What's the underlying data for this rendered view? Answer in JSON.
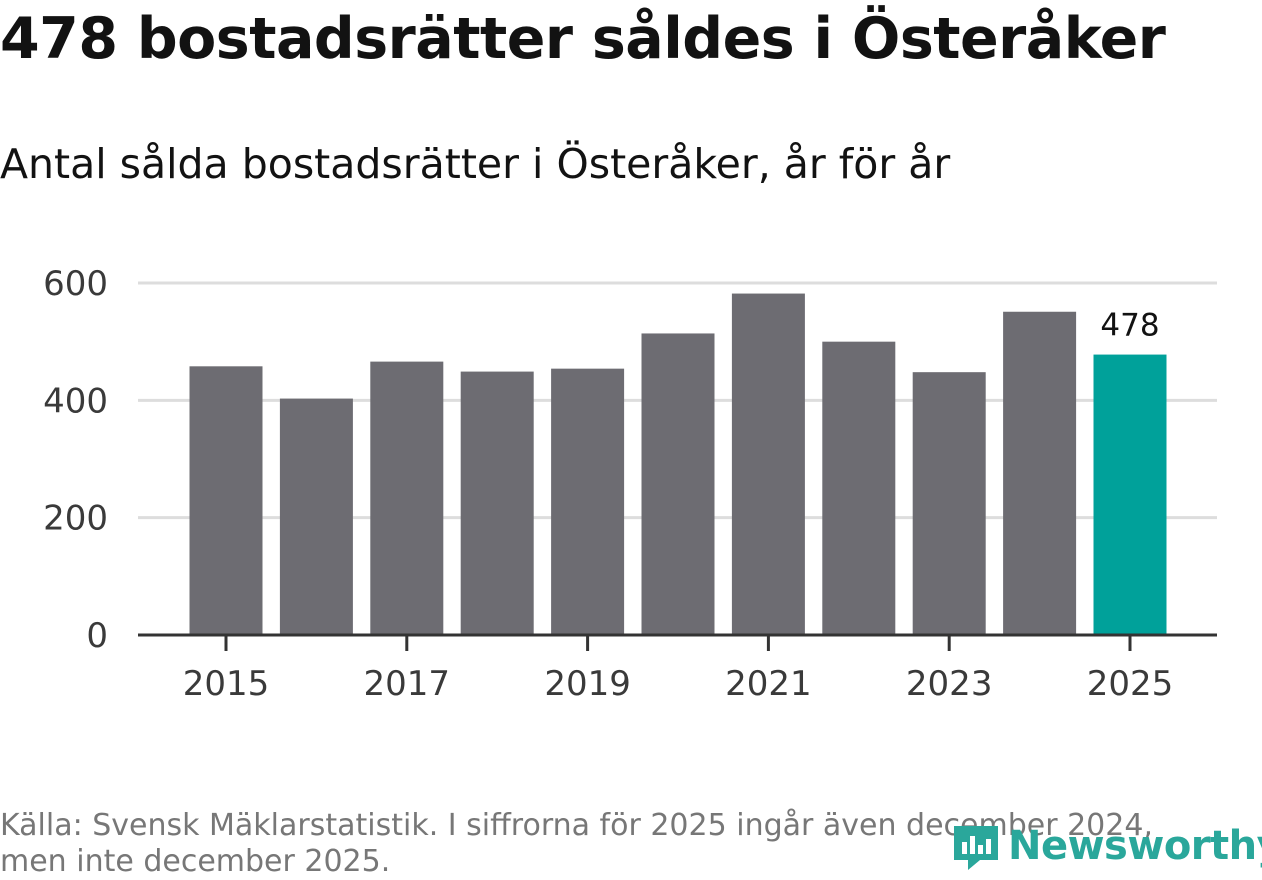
{
  "header": {
    "title": "478 bostadsrätter såldes i Österåker",
    "subtitle": "Antal sålda bostadsrätter i Österåker, år för år"
  },
  "chart_data": {
    "type": "bar",
    "title": "478 bostadsrätter såldes i Österåker",
    "subtitle": "Antal sålda bostadsrätter i Österåker, år för år",
    "categories": [
      "2015",
      "2016",
      "2017",
      "2018",
      "2019",
      "2020",
      "2021",
      "2022",
      "2023",
      "2024",
      "2025"
    ],
    "values": [
      458,
      403,
      466,
      449,
      454,
      514,
      582,
      500,
      448,
      551,
      478
    ],
    "x_tick_labels": [
      "2015",
      "2017",
      "2019",
      "2021",
      "2023",
      "2025"
    ],
    "y_ticks": [
      0,
      200,
      400,
      600
    ],
    "ylim": [
      0,
      600
    ],
    "xlabel": "",
    "ylabel": "",
    "grid": true,
    "highlight_index": 10,
    "annotations": [
      {
        "category": "2025",
        "text": "478"
      }
    ],
    "colors": {
      "bar": "#6d6c72",
      "highlight": "#00a19a",
      "grid": "#dddddd",
      "axis": "#333333"
    }
  },
  "footer": {
    "source": "Källa: Svensk Mäklarstatistik. I siffrorna för 2025 ingår även december 2024, men inte december 2025.",
    "logo_text": "Newsworthy"
  }
}
